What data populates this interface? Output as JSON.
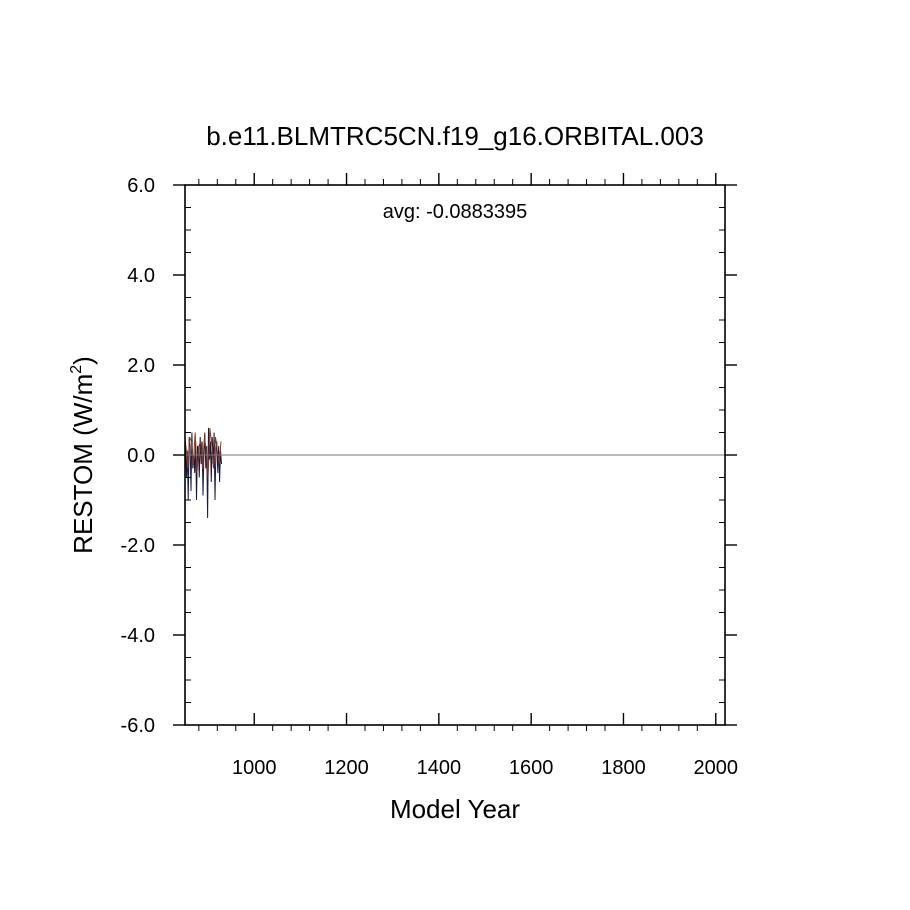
{
  "chart_data": {
    "type": "line",
    "title": "b.e11.BLMTRC5CN.f19_g16.ORBITAL.003",
    "annotation": "avg: -0.0883395",
    "xlabel": "Model Year",
    "ylabel": "RESTOM (W/m",
    "ylabel_superscript": "2",
    "ylabel_suffix": ")",
    "xlim": [
      850,
      2020
    ],
    "ylim": [
      -6.0,
      6.0
    ],
    "xticks": [
      1000,
      1200,
      1400,
      1600,
      1800,
      2000
    ],
    "xtick_labels": [
      "1000",
      "1200",
      "1400",
      "1600",
      "1800",
      "2000"
    ],
    "yticks": [
      6.0,
      4.0,
      2.0,
      0.0,
      -2.0,
      -4.0,
      -6.0
    ],
    "ytick_labels": [
      "6.0",
      "4.0",
      "2.0",
      "0.0",
      "-2.0",
      "-4.0",
      "-6.0"
    ],
    "reference_line_y": 0.0,
    "grid": false,
    "series": [
      {
        "color": "#1a1a40",
        "x": [
          851,
          853,
          855,
          857,
          859,
          861,
          863,
          865,
          867,
          869,
          871,
          873,
          875,
          877,
          879,
          881,
          883,
          885,
          887,
          889,
          891,
          893,
          895,
          897,
          899,
          901,
          903,
          905,
          907,
          909,
          911,
          913,
          915,
          917,
          919,
          921,
          923,
          925,
          927,
          929
        ],
        "y": [
          0.3,
          -0.5,
          0.1,
          -1.0,
          0.4,
          0.2,
          -0.8,
          0.5,
          -0.3,
          0.0,
          -0.4,
          0.3,
          -1.0,
          0.2,
          0.1,
          -0.5,
          0.4,
          -0.2,
          0.3,
          -0.9,
          0.0,
          0.5,
          -0.3,
          0.2,
          -1.4,
          0.6,
          -0.1,
          0.3,
          -0.6,
          0.4,
          -0.2,
          0.5,
          -1.0,
          0.1,
          0.3,
          -0.4,
          0.2,
          -0.6,
          0.1,
          -0.2
        ]
      },
      {
        "color": "#8b3a1a",
        "x": [
          852,
          856,
          860,
          864,
          868,
          872,
          876,
          880,
          884,
          888,
          892,
          896,
          900,
          904,
          908,
          912,
          916,
          920,
          924,
          928
        ],
        "y": [
          0.2,
          -0.3,
          0.4,
          0.3,
          -0.2,
          0.5,
          -0.4,
          0.2,
          0.3,
          -0.3,
          0.4,
          0.1,
          -0.5,
          0.6,
          0.2,
          -0.3,
          0.4,
          0.1,
          -0.2,
          0.3
        ]
      }
    ]
  }
}
